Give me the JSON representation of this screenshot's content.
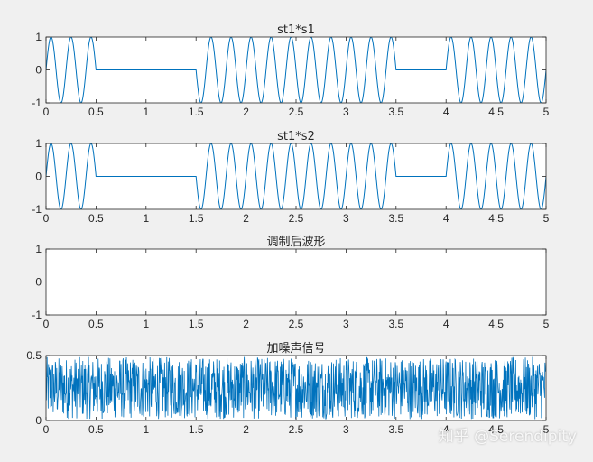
{
  "figure": {
    "background": "#f0f0f0",
    "line_color": "#0072bd",
    "watermark": "知乎 @Serendipity"
  },
  "chart_data": [
    {
      "type": "line",
      "title": "st1*s1",
      "xlim": [
        0,
        5
      ],
      "ylim": [
        -1,
        1
      ],
      "xticks": [
        "0",
        "0.5",
        "1",
        "1.5",
        "2",
        "2.5",
        "3",
        "3.5",
        "4",
        "4.5",
        "5"
      ],
      "yticks": [
        "-1",
        "0",
        "1"
      ],
      "signal": {
        "kind": "gated_sine",
        "frequency": 5,
        "amplitude": 1,
        "on_intervals": [
          [
            0,
            0.5
          ],
          [
            1.5,
            3.5
          ],
          [
            4,
            5
          ]
        ]
      },
      "grid": false
    },
    {
      "type": "line",
      "title": "st1*s2",
      "xlim": [
        0,
        5
      ],
      "ylim": [
        -1,
        1
      ],
      "xticks": [
        "0",
        "0.5",
        "1",
        "1.5",
        "2",
        "2.5",
        "3",
        "3.5",
        "4",
        "4.5",
        "5"
      ],
      "yticks": [
        "-1",
        "0",
        "1"
      ],
      "signal": {
        "kind": "gated_sine",
        "frequency": 5,
        "amplitude": 1,
        "on_intervals": [
          [
            0,
            0.5
          ],
          [
            1.5,
            3.5
          ],
          [
            4,
            5
          ]
        ]
      },
      "grid": false
    },
    {
      "type": "line",
      "title": "调制后波形",
      "xlim": [
        0,
        5
      ],
      "ylim": [
        -1,
        1
      ],
      "xticks": [
        "0",
        "0.5",
        "1",
        "1.5",
        "2",
        "2.5",
        "3",
        "3.5",
        "4",
        "4.5",
        "5"
      ],
      "yticks": [
        "-1",
        "0",
        "1"
      ],
      "signal": {
        "kind": "constant",
        "value": 0
      },
      "grid": false
    },
    {
      "type": "line",
      "title": "加噪声信号",
      "xlim": [
        0,
        5
      ],
      "ylim": [
        0,
        0.5
      ],
      "xticks": [
        "0",
        "0.5",
        "1",
        "1.5",
        "2",
        "2.5",
        "3",
        "3.5",
        "4",
        "4.5",
        "5"
      ],
      "yticks": [
        "0",
        "0.5"
      ],
      "signal": {
        "kind": "noise",
        "min": 0.01,
        "max": 0.49,
        "samples": 1400
      },
      "grid": false
    }
  ]
}
